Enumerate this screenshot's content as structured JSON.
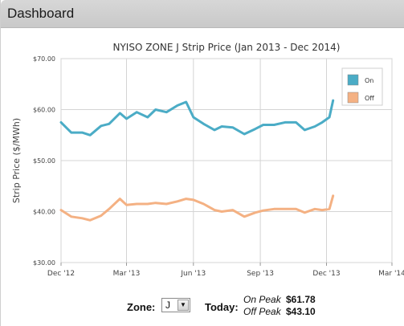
{
  "window": {
    "title": "Dashboard"
  },
  "chart_data": {
    "type": "line",
    "title": "NYISO ZONE J Strip Price (Jan 2013 - Dec 2014)",
    "ylabel": "Strip Price ($/MWh)",
    "xlabel": "",
    "ylim": [
      30,
      70
    ],
    "yticks": [
      "$30.00",
      "$40.00",
      "$50.00",
      "$60.00",
      "$70.00"
    ],
    "xlim": [
      "2012-12-01",
      "2014-03-01"
    ],
    "xticks": [
      "Dec '12",
      "Mar '13",
      "Jun '13",
      "Sep '13",
      "Dec '13",
      "Mar '14"
    ],
    "grid": true,
    "legend_position": "top-right",
    "series": [
      {
        "name": "On",
        "color": "#4bacc6",
        "x": [
          "2012-12-01",
          "2012-12-15",
          "2012-12-30",
          "2013-01-10",
          "2013-01-25",
          "2013-02-05",
          "2013-02-20",
          "2013-03-01",
          "2013-03-15",
          "2013-03-30",
          "2013-04-10",
          "2013-04-25",
          "2013-05-10",
          "2013-05-22",
          "2013-06-01",
          "2013-06-15",
          "2013-06-30",
          "2013-07-10",
          "2013-07-25",
          "2013-08-10",
          "2013-08-25",
          "2013-09-05",
          "2013-09-20",
          "2013-10-05",
          "2013-10-20",
          "2013-11-01",
          "2013-11-15",
          "2013-11-25",
          "2013-12-05",
          "2013-12-10"
        ],
        "values": [
          57.5,
          55.5,
          55.5,
          55,
          56.8,
          57.2,
          59.3,
          58.2,
          59.5,
          58.5,
          60,
          59.5,
          60.8,
          61.5,
          58.5,
          57.2,
          56,
          56.7,
          56.5,
          55.2,
          56.2,
          57,
          57,
          57.5,
          57.5,
          56,
          56.7,
          57.5,
          58.5,
          61.8
        ]
      },
      {
        "name": "Off",
        "color": "#f4b183",
        "x": [
          "2012-12-01",
          "2012-12-15",
          "2012-12-30",
          "2013-01-10",
          "2013-01-25",
          "2013-02-05",
          "2013-02-20",
          "2013-03-01",
          "2013-03-15",
          "2013-03-30",
          "2013-04-10",
          "2013-04-25",
          "2013-05-10",
          "2013-05-22",
          "2013-06-01",
          "2013-06-15",
          "2013-06-30",
          "2013-07-10",
          "2013-07-25",
          "2013-08-10",
          "2013-08-25",
          "2013-09-05",
          "2013-09-20",
          "2013-10-05",
          "2013-10-20",
          "2013-11-01",
          "2013-11-15",
          "2013-11-25",
          "2013-12-05",
          "2013-12-10"
        ],
        "values": [
          40.3,
          39,
          38.7,
          38.3,
          39.2,
          40.5,
          42.5,
          41.3,
          41.5,
          41.5,
          41.7,
          41.5,
          42,
          42.5,
          42.3,
          41.5,
          40.3,
          40,
          40.3,
          39,
          39.8,
          40.2,
          40.5,
          40.5,
          40.5,
          39.8,
          40.5,
          40.3,
          40.5,
          43.1
        ]
      }
    ]
  },
  "footer": {
    "zone_label": "Zone:",
    "zone_value": "J",
    "dropdown_icon": "chevron-down-icon",
    "today_label": "Today:",
    "on_peak_label": "On Peak",
    "on_peak_value": "$61.78",
    "off_peak_label": "Off Peak",
    "off_peak_value": "$43.10"
  }
}
